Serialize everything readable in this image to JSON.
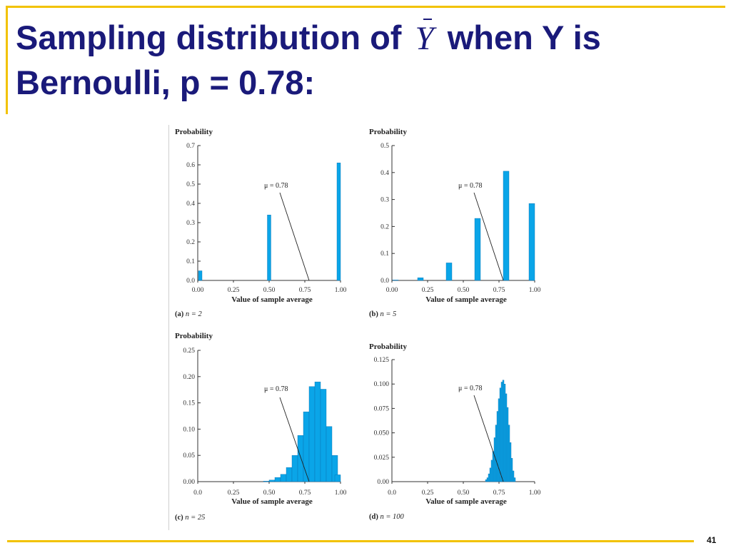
{
  "slide": {
    "title_part1": "Sampling distribution of",
    "title_symbol": "Y",
    "title_part2": "when Y is Bernoulli, p = 0.78:",
    "page_number": "41"
  },
  "colors": {
    "title": "#1a1a7a",
    "accent_rule": "#f2c200",
    "bar": "#0aa5e8",
    "bar_edge": "#0a6fb0"
  },
  "chart_data": [
    {
      "type": "bar",
      "panel": "(a)",
      "n_label": "n = 2",
      "ylabel": "Probability",
      "xlabel": "Value of sample average",
      "annotation": "μ = 0.78",
      "mu": 0.78,
      "xlim": [
        0,
        1
      ],
      "ylim": [
        0,
        0.7
      ],
      "xticks": [
        "0.00",
        "0.25",
        "0.50",
        "0.75",
        "1.00"
      ],
      "yticks": [
        "0.0",
        "0.1",
        "0.2",
        "0.3",
        "0.4",
        "0.5",
        "0.6",
        "0.7"
      ],
      "bar_width": 0.025,
      "x": [
        0.0,
        0.5,
        1.0
      ],
      "values": [
        0.05,
        0.34,
        0.61
      ]
    },
    {
      "type": "bar",
      "panel": "(b)",
      "n_label": "n = 5",
      "ylabel": "Probability",
      "xlabel": "Value of sample average",
      "annotation": "μ = 0.78",
      "mu": 0.78,
      "xlim": [
        0,
        1
      ],
      "ylim": [
        0,
        0.5
      ],
      "xticks": [
        "0.00",
        "0.25",
        "0.50",
        "0.75",
        "1.00"
      ],
      "yticks": [
        "0.0",
        "0.1",
        "0.2",
        "0.3",
        "0.4",
        "0.5"
      ],
      "bar_width": 0.04,
      "x": [
        0.0,
        0.2,
        0.4,
        0.6,
        0.8,
        1.0
      ],
      "values": [
        0.0005,
        0.01,
        0.065,
        0.23,
        0.405,
        0.285
      ]
    },
    {
      "type": "bar",
      "panel": "(c)",
      "n_label": "n = 25",
      "ylabel": "Probability",
      "xlabel": "Value of sample average",
      "annotation": "μ = 0.78",
      "mu": 0.78,
      "xlim": [
        0,
        1
      ],
      "ylim": [
        0,
        0.25
      ],
      "xticks": [
        "0.0",
        "0.25",
        "0.50",
        "0.75",
        "1.00"
      ],
      "yticks": [
        "0.00",
        "0.05",
        "0.10",
        "0.15",
        "0.20",
        "0.25"
      ],
      "bar_width": 0.04,
      "x": [
        0.48,
        0.52,
        0.56,
        0.6,
        0.64,
        0.68,
        0.72,
        0.76,
        0.8,
        0.84,
        0.88,
        0.92,
        0.96,
        1.0
      ],
      "values": [
        0.001,
        0.003,
        0.008,
        0.014,
        0.027,
        0.05,
        0.088,
        0.133,
        0.181,
        0.19,
        0.176,
        0.105,
        0.05,
        0.013
      ]
    },
    {
      "type": "bar",
      "panel": "(d)",
      "n_label": "n = 100",
      "ylabel": "Probability",
      "xlabel": "Value of sample average",
      "annotation": "μ = 0.78",
      "mu": 0.78,
      "xlim": [
        0,
        1
      ],
      "ylim": [
        0,
        0.125
      ],
      "xticks": [
        "0.0",
        "0.25",
        "0.50",
        "0.75",
        "1.00"
      ],
      "yticks": [
        "0.00",
        "0.025",
        "0.050",
        "0.075",
        "0.100",
        "0.125"
      ],
      "bar_width": 0.01,
      "x": [
        0.66,
        0.67,
        0.68,
        0.69,
        0.7,
        0.71,
        0.72,
        0.73,
        0.74,
        0.75,
        0.76,
        0.77,
        0.78,
        0.79,
        0.8,
        0.81,
        0.82,
        0.83,
        0.84,
        0.85,
        0.86
      ],
      "values": [
        0.002,
        0.004,
        0.008,
        0.014,
        0.022,
        0.031,
        0.045,
        0.058,
        0.072,
        0.085,
        0.096,
        0.102,
        0.104,
        0.1,
        0.09,
        0.076,
        0.058,
        0.04,
        0.024,
        0.011,
        0.004
      ]
    }
  ]
}
